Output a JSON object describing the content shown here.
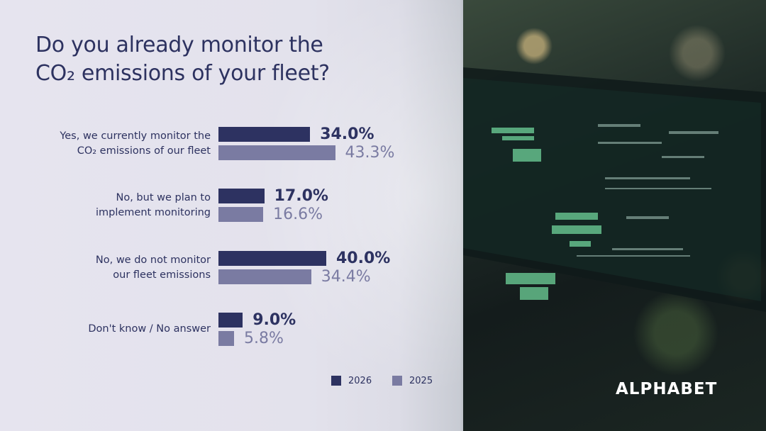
{
  "title_lines": [
    "Do you already monitor the",
    "CO₂ emissions of your fleet?"
  ],
  "logo": "ALPHABET",
  "colors": {
    "series_2026": "#2d3261",
    "series_2025": "#7a7ba2",
    "text": "#2d3260"
  },
  "chart_data": {
    "type": "bar",
    "orientation": "horizontal",
    "categories": [
      [
        "Yes, we currently monitor the",
        "CO₂ emissions of our fleet"
      ],
      [
        "No, but we plan to",
        "implement monitoring"
      ],
      [
        "No, we do not monitor",
        "our fleet emissions"
      ],
      [
        "Don't know / No answer"
      ]
    ],
    "series": [
      {
        "name": "2026",
        "values": [
          34.0,
          17.0,
          40.0,
          9.0
        ],
        "labels": [
          "34.0%",
          "17.0%",
          "40.0%",
          "9.0%"
        ]
      },
      {
        "name": "2025",
        "values": [
          43.3,
          16.6,
          34.4,
          5.8
        ],
        "labels": [
          "43.3%",
          "16.6%",
          "34.4%",
          "5.8%"
        ]
      }
    ],
    "unit": "%",
    "legend_position": "bottom-right",
    "grid": false
  }
}
